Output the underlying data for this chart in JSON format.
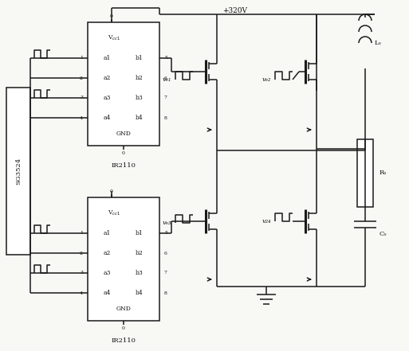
{
  "bg_color": "#f8f8f5",
  "line_color": "#1a1a1a",
  "text_color": "#111111",
  "fig_width": 5.13,
  "fig_height": 4.41,
  "dpi": 100,
  "voltage_label": "+320V",
  "chip1_label": "IR2110",
  "chip2_label": "IR2110",
  "sg_label": "SG3524",
  "inductor_label": "Lₒ",
  "resistor_label": "Rₒ",
  "capacitor_label": "Cₒ",
  "vg1_label": "vₑ₁",
  "vg2_label": "vₑ₂",
  "vg3_label": "vₑ₃",
  "vg4_label": "v₂₄"
}
